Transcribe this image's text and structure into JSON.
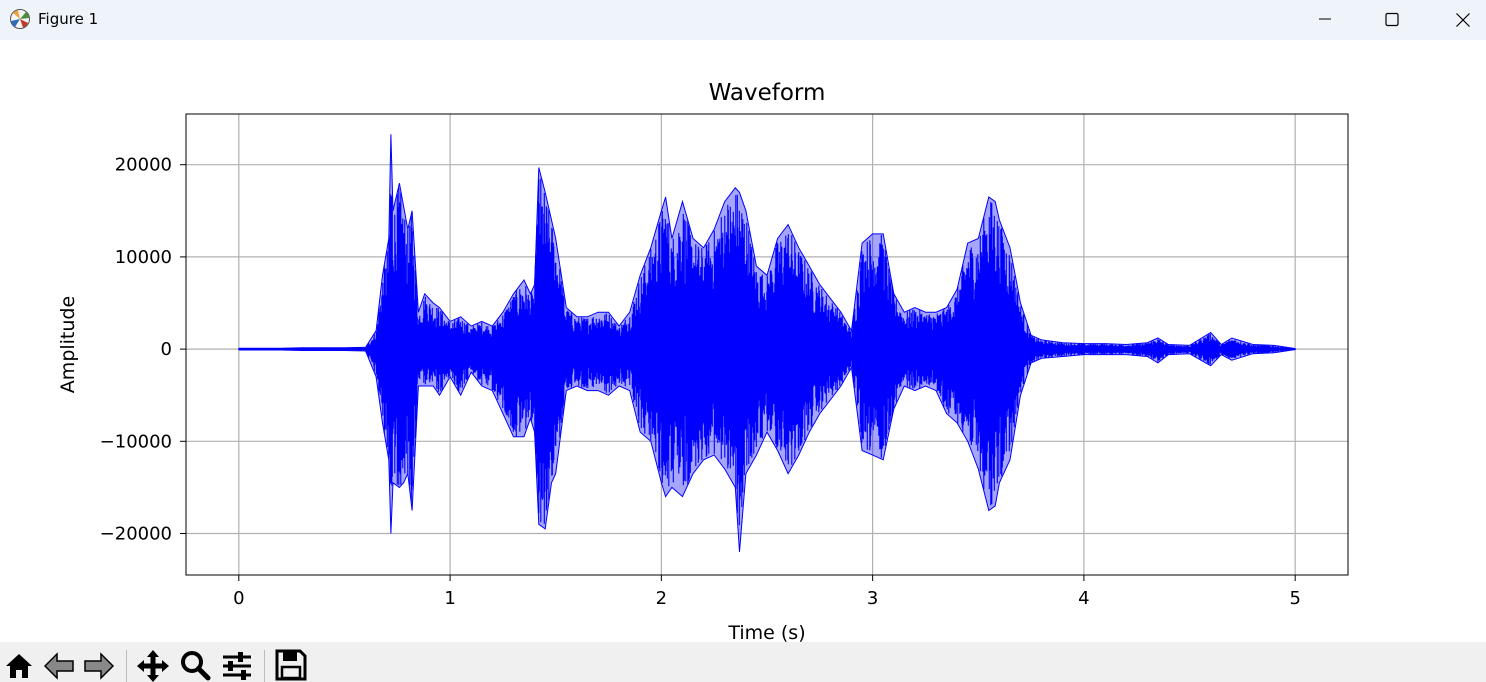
{
  "window": {
    "title": "Figure 1",
    "icon": "matplotlib-icon",
    "controls": [
      "minimize-icon",
      "maximize-icon",
      "close-icon"
    ]
  },
  "toolbar": {
    "tools": [
      "home-icon",
      "back-arrow-icon",
      "forward-arrow-icon",
      "pan-icon",
      "zoom-icon",
      "configure-subplots-icon",
      "save-icon"
    ]
  },
  "colors": {
    "line": "#0000ff",
    "grid": "#b0b0b0",
    "titlebar": "#eff3fa",
    "toolbar": "#f0f0f0"
  },
  "chart_data": {
    "type": "line",
    "title": "Waveform",
    "xlabel": "Time (s)",
    "ylabel": "Amplitude",
    "xlim": [
      -0.25,
      5.25
    ],
    "ylim": [
      -24500,
      25500
    ],
    "xticks": [
      0,
      1,
      2,
      3,
      4,
      5
    ],
    "xtick_labels": [
      "0",
      "1",
      "2",
      "3",
      "4",
      "5"
    ],
    "yticks": [
      -20000,
      -10000,
      0,
      10000,
      20000
    ],
    "ytick_labels": [
      "−20000",
      "−10000",
      "0",
      "10000",
      "20000"
    ],
    "grid": true,
    "legend": false,
    "series": [
      {
        "color": "#0000ff",
        "x": [
          0.0,
          0.1,
          0.2,
          0.3,
          0.4,
          0.5,
          0.6,
          0.65,
          0.68,
          0.71,
          0.72,
          0.73,
          0.76,
          0.78,
          0.8,
          0.82,
          0.85,
          0.88,
          0.92,
          0.95,
          1.0,
          1.05,
          1.1,
          1.15,
          1.2,
          1.25,
          1.3,
          1.35,
          1.38,
          1.4,
          1.42,
          1.45,
          1.48,
          1.5,
          1.55,
          1.6,
          1.65,
          1.7,
          1.75,
          1.8,
          1.85,
          1.9,
          1.95,
          2.0,
          2.02,
          2.05,
          2.1,
          2.15,
          2.2,
          2.25,
          2.3,
          2.35,
          2.37,
          2.4,
          2.45,
          2.5,
          2.55,
          2.6,
          2.65,
          2.7,
          2.75,
          2.8,
          2.85,
          2.9,
          2.95,
          3.0,
          3.05,
          3.1,
          3.15,
          3.2,
          3.25,
          3.3,
          3.35,
          3.4,
          3.45,
          3.5,
          3.55,
          3.58,
          3.6,
          3.65,
          3.7,
          3.75,
          3.8,
          3.9,
          4.0,
          4.1,
          4.2,
          4.3,
          4.35,
          4.4,
          4.5,
          4.6,
          4.65,
          4.7,
          4.8,
          4.9,
          5.0
        ],
        "y_max": [
          100,
          100,
          100,
          150,
          150,
          150,
          200,
          2000,
          8000,
          12000,
          23300,
          15000,
          18000,
          15500,
          13000,
          15000,
          4000,
          6000,
          5000,
          4500,
          3000,
          3500,
          2500,
          3000,
          2500,
          4000,
          6000,
          7500,
          6000,
          7000,
          19700,
          17000,
          14000,
          12000,
          4500,
          3500,
          3500,
          4000,
          4000,
          2500,
          4000,
          8000,
          11000,
          15000,
          16500,
          12000,
          16000,
          12000,
          11000,
          13000,
          16000,
          17500,
          17000,
          15000,
          9000,
          8000,
          12000,
          13500,
          11000,
          9000,
          7000,
          5500,
          4000,
          2000,
          11500,
          12500,
          12500,
          6000,
          4000,
          4500,
          4000,
          4000,
          4500,
          6500,
          11500,
          12000,
          16500,
          16000,
          14000,
          11000,
          5000,
          1500,
          1000,
          700,
          600,
          600,
          500,
          700,
          1200,
          500,
          400,
          1800,
          500,
          1200,
          500,
          400,
          50
        ],
        "y_min": [
          -100,
          -100,
          -100,
          -150,
          -150,
          -150,
          -200,
          -3000,
          -8000,
          -12000,
          -20000,
          -14500,
          -15000,
          -14500,
          -13500,
          -17500,
          -4000,
          -4000,
          -4000,
          -5000,
          -3000,
          -5000,
          -2500,
          -4000,
          -4500,
          -7000,
          -9500,
          -9500,
          -7500,
          -9000,
          -19000,
          -19500,
          -14500,
          -13500,
          -4500,
          -4000,
          -4500,
          -4500,
          -5000,
          -4000,
          -4500,
          -9000,
          -10000,
          -14500,
          -16000,
          -15000,
          -16000,
          -13500,
          -12000,
          -11500,
          -13000,
          -15000,
          -22000,
          -13500,
          -11500,
          -9000,
          -11000,
          -13500,
          -11500,
          -9000,
          -7000,
          -5500,
          -4000,
          -2000,
          -11000,
          -11500,
          -12000,
          -6500,
          -4000,
          -4500,
          -4000,
          -4500,
          -7000,
          -8000,
          -10000,
          -13000,
          -17500,
          -17000,
          -14500,
          -12000,
          -5000,
          -1500,
          -1000,
          -800,
          -600,
          -600,
          -600,
          -800,
          -1500,
          -600,
          -500,
          -1800,
          -600,
          -1200,
          -500,
          -400,
          -50
        ]
      }
    ]
  }
}
